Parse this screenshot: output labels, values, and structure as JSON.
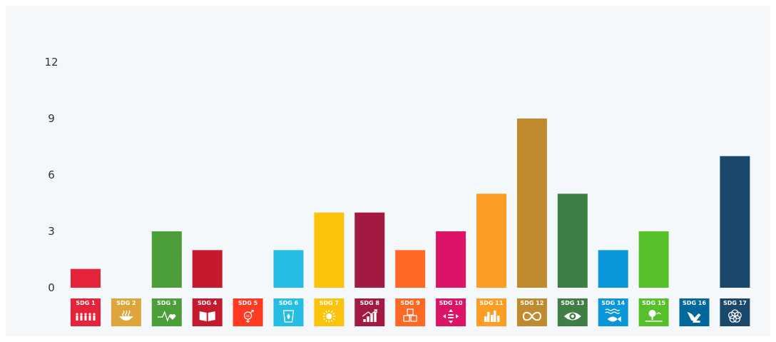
{
  "chart_data": {
    "type": "bar",
    "categories": [
      "SDG 1",
      "SDG 2",
      "SDG 3",
      "SDG 4",
      "SDG 5",
      "SDG 6",
      "SDG 7",
      "SDG 8",
      "SDG 9",
      "SDG 10",
      "SDG 11",
      "SDG 12",
      "SDG 13",
      "SDG 14",
      "SDG 15",
      "SDG 16",
      "SDG 17"
    ],
    "values": [
      1,
      0,
      3,
      2,
      0,
      2,
      4,
      4,
      2,
      3,
      5,
      9,
      5,
      2,
      3,
      0,
      7
    ],
    "colors": [
      "#e5243b",
      "#dda63a",
      "#4c9f38",
      "#c5192d",
      "#ff3a21",
      "#26bde2",
      "#fcc30b",
      "#a21942",
      "#fd6925",
      "#dd1367",
      "#fd9d24",
      "#bf8b2e",
      "#3f7e44",
      "#0a97d9",
      "#56c02b",
      "#00689d",
      "#19486a"
    ],
    "icons": [
      "people-icon",
      "bowl-icon",
      "heartbeat-icon",
      "book-icon",
      "gender-icon",
      "water-drop-icon",
      "sun-icon",
      "growth-chart-icon",
      "cubes-icon",
      "equality-arrows-icon",
      "city-icon",
      "infinity-icon",
      "eye-globe-icon",
      "fish-icon",
      "tree-icon",
      "dove-icon",
      "rings-icon"
    ],
    "yticks": [
      0,
      3,
      6,
      9,
      12
    ],
    "ylim": [
      0,
      12
    ],
    "title": "",
    "xlabel": "",
    "ylabel": "",
    "grid": false,
    "legend": "none"
  }
}
